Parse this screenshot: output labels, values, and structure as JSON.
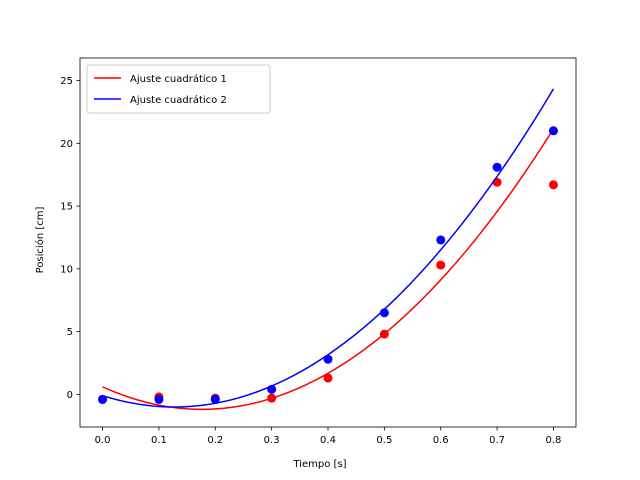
{
  "chart_data": {
    "type": "scatter",
    "xlabel": "Tiempo [s]",
    "ylabel": "Posición [cm]",
    "xlim": [
      -0.04,
      0.84
    ],
    "ylim": [
      -2.6,
      26.8
    ],
    "xticks": [
      0.0,
      0.1,
      0.2,
      0.3,
      0.4,
      0.5,
      0.6,
      0.7,
      0.8
    ],
    "yticks": [
      0,
      5,
      10,
      15,
      20,
      25
    ],
    "grid": false,
    "legend_position": "upper-left",
    "series": [
      {
        "name": "Ajuste cuadrático 1",
        "color": "#ff0000",
        "points": {
          "x": [
            0.0,
            0.1,
            0.2,
            0.3,
            0.4,
            0.5,
            0.6,
            0.7,
            0.8
          ],
          "y": [
            -0.4,
            -0.2,
            -0.3,
            -0.3,
            1.3,
            4.8,
            10.3,
            16.9,
            16.7
          ],
          "yerr": [
            0.3,
            0.3,
            0.3,
            0.3,
            0.3,
            0.3,
            0.3,
            0.3,
            0.3
          ]
        },
        "fit": {
          "a": 57.5,
          "b": -20.3,
          "c": 0.6,
          "range": [
            0.0,
            0.8
          ]
        }
      },
      {
        "name": "Ajuste cuadrático 2",
        "color": "#0000ff",
        "points": {
          "x": [
            0.0,
            0.1,
            0.2,
            0.3,
            0.4,
            0.5,
            0.6,
            0.7,
            0.8
          ],
          "y": [
            -0.4,
            -0.4,
            -0.4,
            0.4,
            2.8,
            6.5,
            12.3,
            18.1,
            21.0
          ],
          "yerr": [
            0.3,
            0.3,
            0.3,
            0.3,
            0.3,
            0.3,
            0.3,
            0.3,
            0.3
          ]
        },
        "fit": {
          "a": 56.0,
          "b": -14.25,
          "c": -0.1,
          "range": [
            0.0,
            0.8
          ]
        }
      }
    ]
  }
}
